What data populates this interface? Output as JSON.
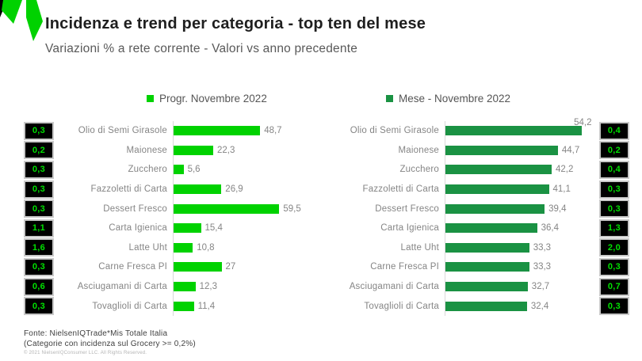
{
  "header": {
    "title": "Incidenza e trend per categoria - top ten del mese",
    "subtitle": "Variazioni % a rete corrente - Valori vs anno precedente"
  },
  "colors": {
    "progressive_green": "#00d200",
    "month_green": "#1a9243",
    "badge_text_green": "#00e100",
    "badge_background": "#000000"
  },
  "footer": {
    "line1": "Fonte: NielsenIQTrade*Mis Totale Italia",
    "line2": "(Categorie con incidenza sul Grocery >= 0,2%)",
    "line3": "© 2021 NielsenIQConsumer LLC. All Rights Reserved."
  },
  "chart_data": [
    {
      "type": "bar",
      "orientation": "horizontal",
      "title": "Progr. Novembre 2022",
      "color": "#00d200",
      "categories": [
        "Olio di Semi Girasole",
        "Maionese",
        "Zucchero",
        "Fazzoletti di Carta",
        "Dessert Fresco",
        "Carta Igienica",
        "Latte Uht",
        "Carne Fresca PI",
        "Asciugamani di Carta",
        "Tovaglioli di Carta"
      ],
      "values": [
        48.7,
        22.3,
        5.6,
        26.9,
        59.5,
        15.4,
        10.8,
        27,
        12.3,
        11.4
      ],
      "value_labels": [
        "48,7",
        "22,3",
        "5,6",
        "26,9",
        "59,5",
        "15,4",
        "10,8",
        "27",
        "12,3",
        "11,4"
      ],
      "incidence_badges": [
        "0,3",
        "0,2",
        "0,3",
        "0,3",
        "0,3",
        "1,1",
        "1,6",
        "0,3",
        "0,6",
        "0,3"
      ],
      "xlim": [
        0,
        62
      ],
      "grid": false,
      "legend_position": "top"
    },
    {
      "type": "bar",
      "orientation": "horizontal",
      "title": "Mese - Novembre 2022",
      "color": "#1a9243",
      "categories": [
        "Olio di Semi Girasole",
        "Maionese",
        "Zucchero",
        "Fazzoletti di Carta",
        "Dessert Fresco",
        "Carta Igienica",
        "Latte Uht",
        "Carne Fresca PI",
        "Asciugamani di Carta",
        "Tovaglioli di Carta"
      ],
      "values": [
        54.2,
        44.7,
        42.2,
        41.1,
        39.4,
        36.4,
        33.3,
        33.3,
        32.7,
        32.4
      ],
      "value_labels": [
        "54,2",
        "44,7",
        "42,2",
        "41,1",
        "39,4",
        "36,4",
        "33,3",
        "33,3",
        "32,7",
        "32,4"
      ],
      "incidence_badges": [
        "0,4",
        "0,2",
        "0,4",
        "0,3",
        "0,3",
        "1,3",
        "2,0",
        "0,3",
        "0,7",
        "0,3"
      ],
      "xlim": [
        0,
        57
      ],
      "grid": false,
      "legend_position": "top"
    }
  ]
}
